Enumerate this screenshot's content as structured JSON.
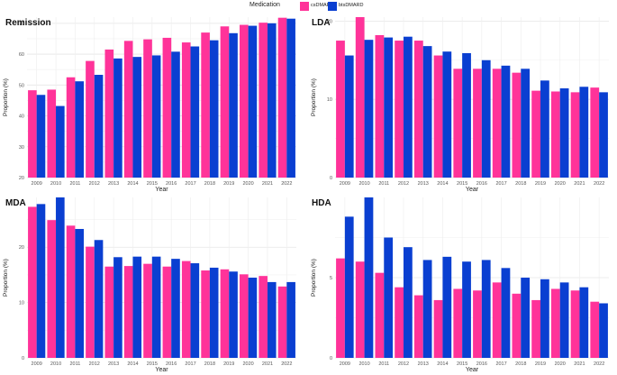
{
  "legend": {
    "title": "Medication",
    "items": [
      {
        "label": "csDMARD",
        "color": "#ff3399"
      },
      {
        "label": "btsDMARD",
        "color": "#0a3fd1"
      }
    ]
  },
  "chart_data": [
    {
      "type": "bar",
      "title": "Remission",
      "xlabel": "Year",
      "ylabel": "Proportion (%)",
      "ylim": [
        20,
        72
      ],
      "yticks": [
        20,
        30,
        40,
        50,
        60,
        70
      ],
      "categories": [
        "2009",
        "2010",
        "2011",
        "2012",
        "2013",
        "2014",
        "2015",
        "2016",
        "2017",
        "2018",
        "2019",
        "2020",
        "2021",
        "2022"
      ],
      "series": [
        {
          "name": "csDMARD",
          "values": [
            48.3,
            48.5,
            52.5,
            57.8,
            61.5,
            64.3,
            64.8,
            65.3,
            63.8,
            67.0,
            69.0,
            69.5,
            70.2,
            71.8
          ]
        },
        {
          "name": "btsDMARD",
          "values": [
            46.8,
            43.2,
            51.2,
            53.3,
            58.6,
            59.1,
            59.6,
            60.8,
            62.5,
            64.5,
            66.8,
            69.2,
            70.0,
            71.5
          ]
        }
      ]
    },
    {
      "type": "bar",
      "title": "LDA",
      "xlabel": "Year",
      "ylabel": "Proportion (%)",
      "ylim": [
        0,
        20.5
      ],
      "yticks": [
        0,
        10,
        20
      ],
      "categories": [
        "2009",
        "2010",
        "2011",
        "2012",
        "2013",
        "2014",
        "2015",
        "2016",
        "2017",
        "2018",
        "2019",
        "2020",
        "2021",
        "2022"
      ],
      "series": [
        {
          "name": "csDMARD",
          "values": [
            17.5,
            20.5,
            18.2,
            17.5,
            17.5,
            15.6,
            13.9,
            13.9,
            13.9,
            13.4,
            11.1,
            11.0,
            10.9,
            11.5
          ]
        },
        {
          "name": "btsDMARD",
          "values": [
            15.6,
            17.6,
            17.9,
            18.0,
            16.8,
            16.1,
            15.9,
            15.0,
            14.3,
            13.9,
            12.4,
            11.4,
            11.6,
            10.9
          ]
        }
      ]
    },
    {
      "type": "bar",
      "title": "MDA",
      "xlabel": "Year",
      "ylabel": "Proportion (%)",
      "ylim": [
        0,
        29
      ],
      "yticks": [
        0,
        10,
        20
      ],
      "categories": [
        "2009",
        "2010",
        "2011",
        "2012",
        "2013",
        "2014",
        "2015",
        "2016",
        "2017",
        "2018",
        "2019",
        "2020",
        "2021",
        "2022"
      ],
      "series": [
        {
          "name": "csDMARD",
          "values": [
            27.3,
            24.9,
            23.9,
            20.1,
            16.5,
            16.6,
            17.0,
            16.5,
            17.5,
            15.8,
            16.0,
            15.1,
            14.8,
            12.9
          ]
        },
        {
          "name": "btsDMARD",
          "values": [
            27.8,
            29.0,
            23.3,
            21.3,
            18.2,
            18.3,
            18.3,
            17.9,
            17.1,
            16.3,
            15.6,
            14.5,
            13.7,
            13.7
          ]
        }
      ]
    },
    {
      "type": "bar",
      "title": "HDA",
      "xlabel": "Year",
      "ylabel": "Proportion (%)",
      "ylim": [
        0,
        10
      ],
      "yticks": [
        0,
        5
      ],
      "categories": [
        "2009",
        "2010",
        "2011",
        "2012",
        "2013",
        "2014",
        "2015",
        "2016",
        "2017",
        "2018",
        "2019",
        "2020",
        "2021",
        "2022"
      ],
      "series": [
        {
          "name": "csDMARD",
          "values": [
            6.2,
            6.0,
            5.3,
            4.4,
            3.9,
            3.6,
            4.3,
            4.2,
            4.7,
            4.0,
            3.6,
            4.3,
            4.2,
            3.5
          ]
        },
        {
          "name": "btsDMARD",
          "values": [
            8.8,
            10.0,
            7.5,
            6.9,
            6.1,
            6.3,
            6.0,
            6.1,
            5.6,
            5.0,
            4.9,
            4.7,
            4.4,
            3.4
          ]
        }
      ]
    }
  ]
}
